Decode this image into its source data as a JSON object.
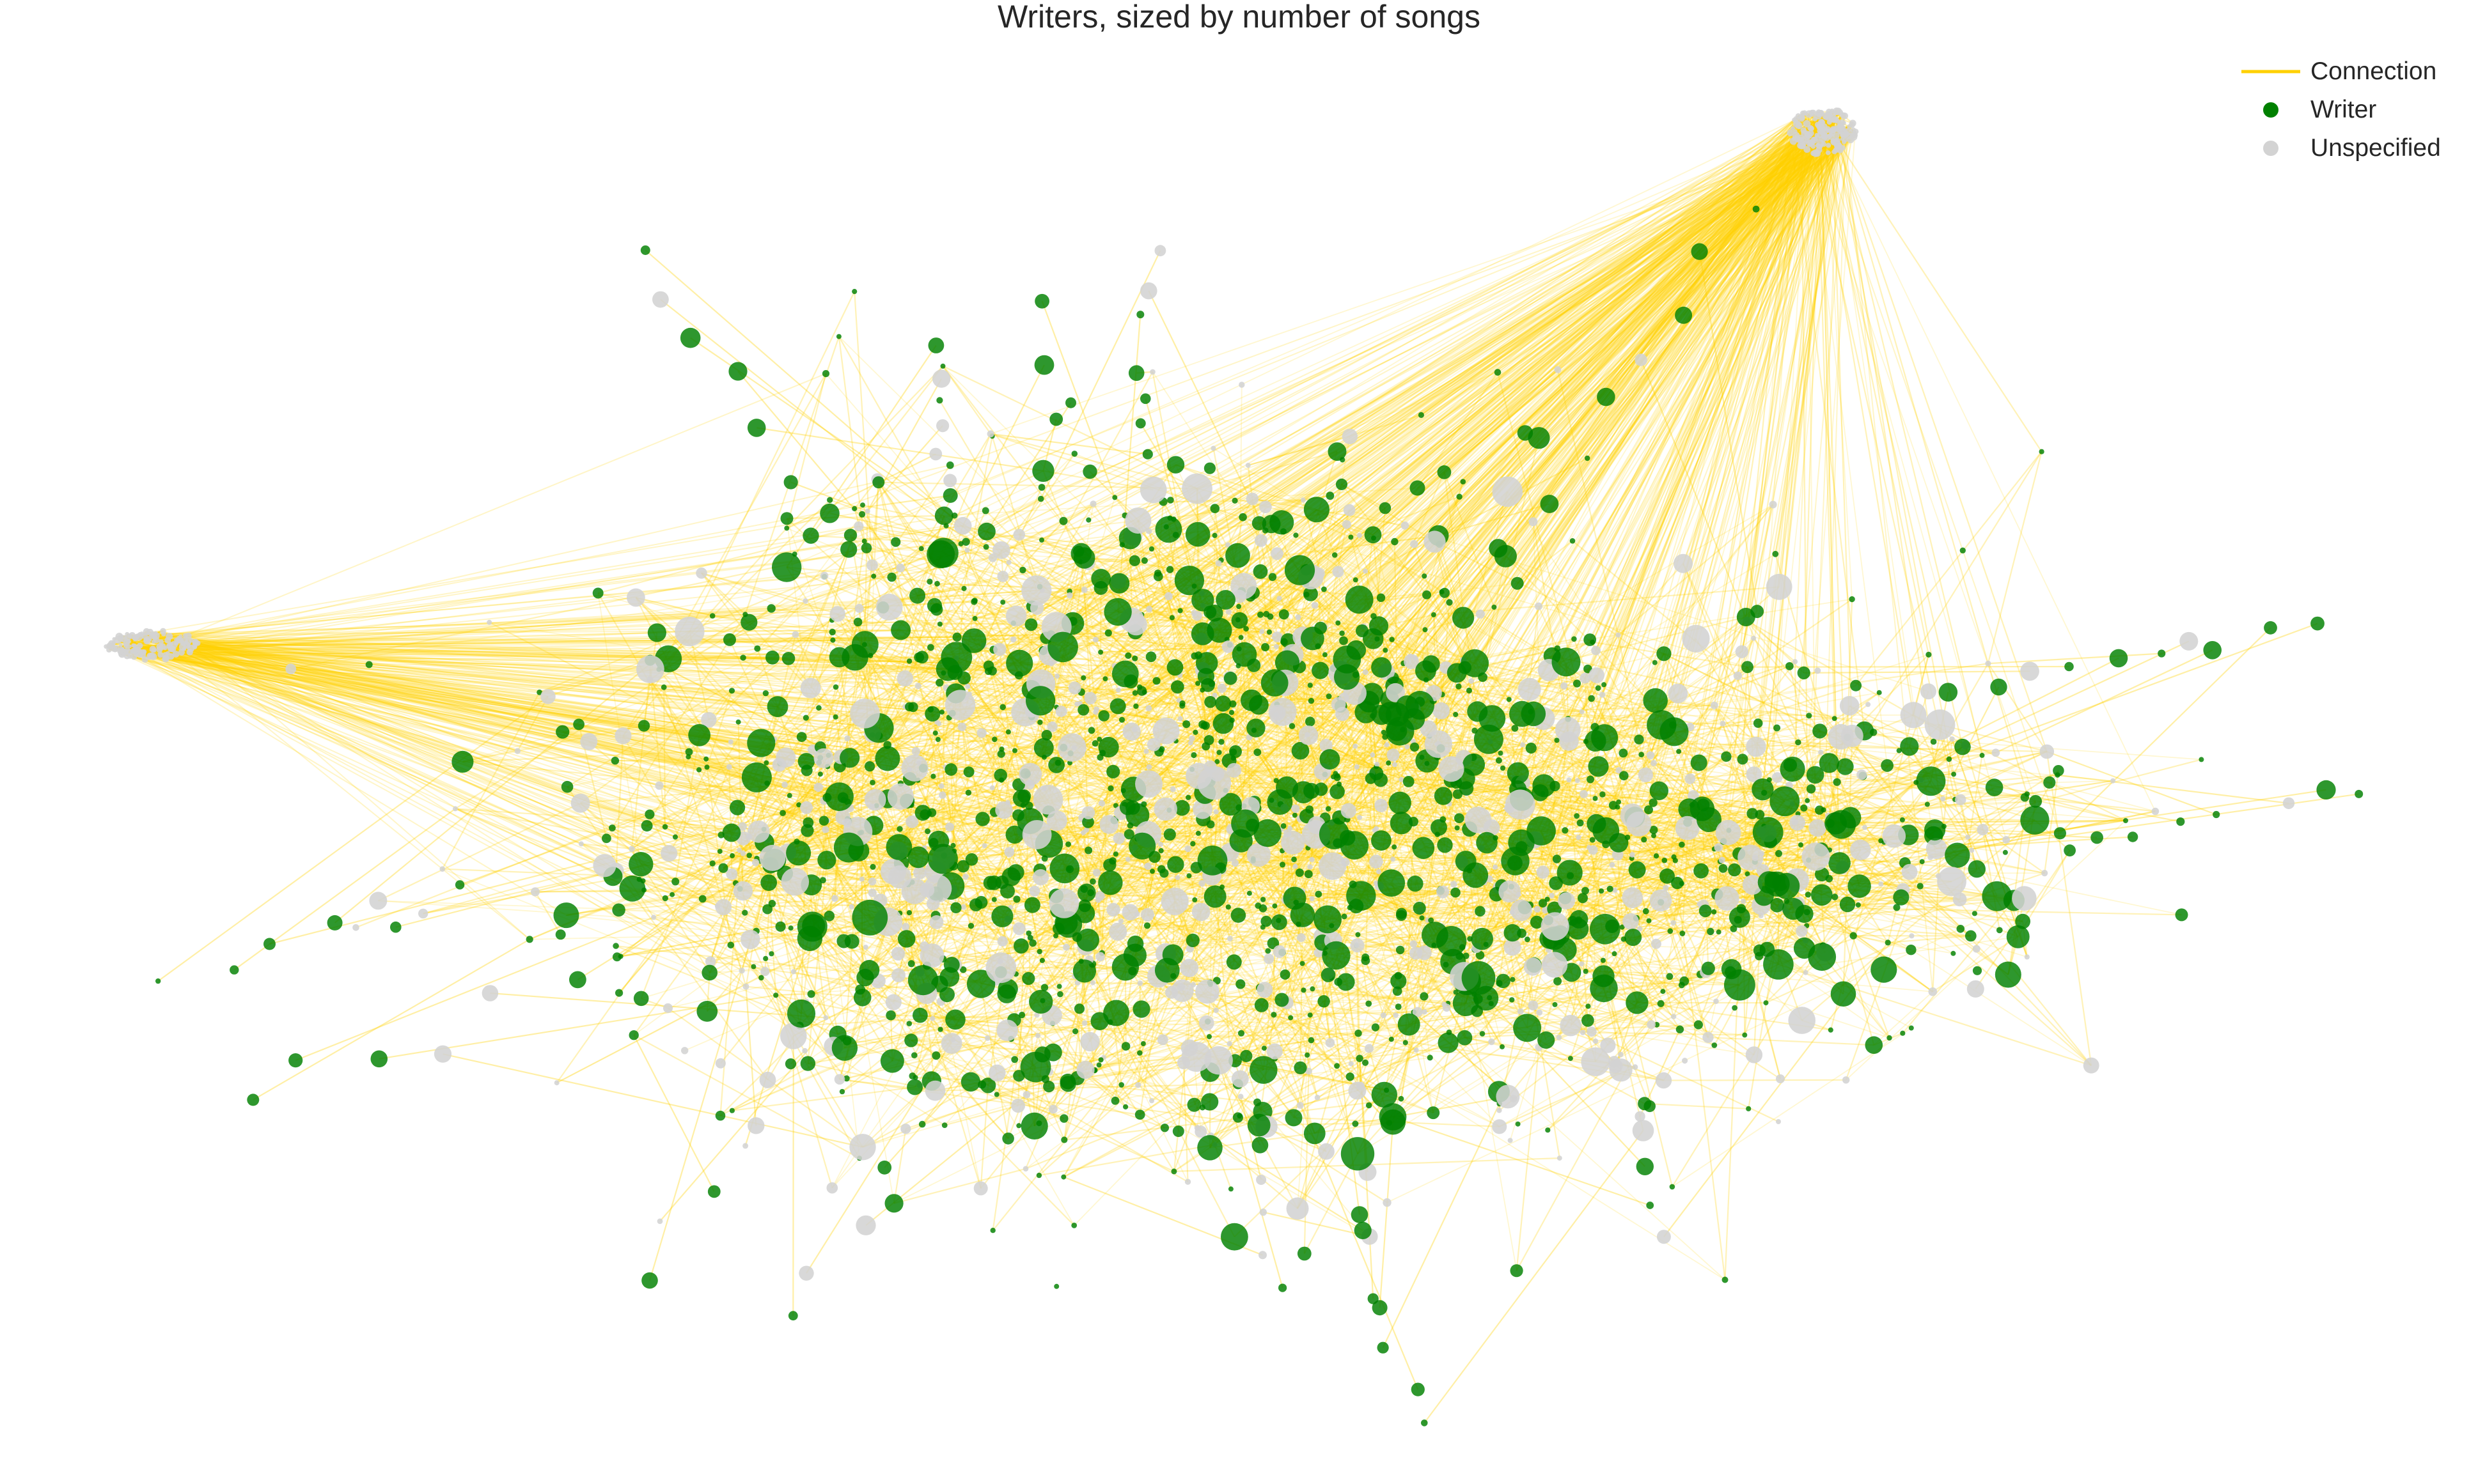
{
  "chart_data": {
    "type": "network",
    "title": "Writers, sized by number of songs",
    "node_size_meaning": "number of songs",
    "grid": false,
    "axes_visible": false,
    "legend_position": "top-right",
    "legend": [
      {
        "label": "Connection",
        "marker": "line",
        "color": "#FFD000"
      },
      {
        "label": "Writer",
        "marker": "circle",
        "color": "#008000"
      },
      {
        "label": "Unspecified",
        "marker": "circle",
        "color": "#D3D3D3"
      }
    ],
    "colors": {
      "connection": "#FFD000",
      "writer": "#008000",
      "unspecified": "#D3D3D3"
    }
  }
}
